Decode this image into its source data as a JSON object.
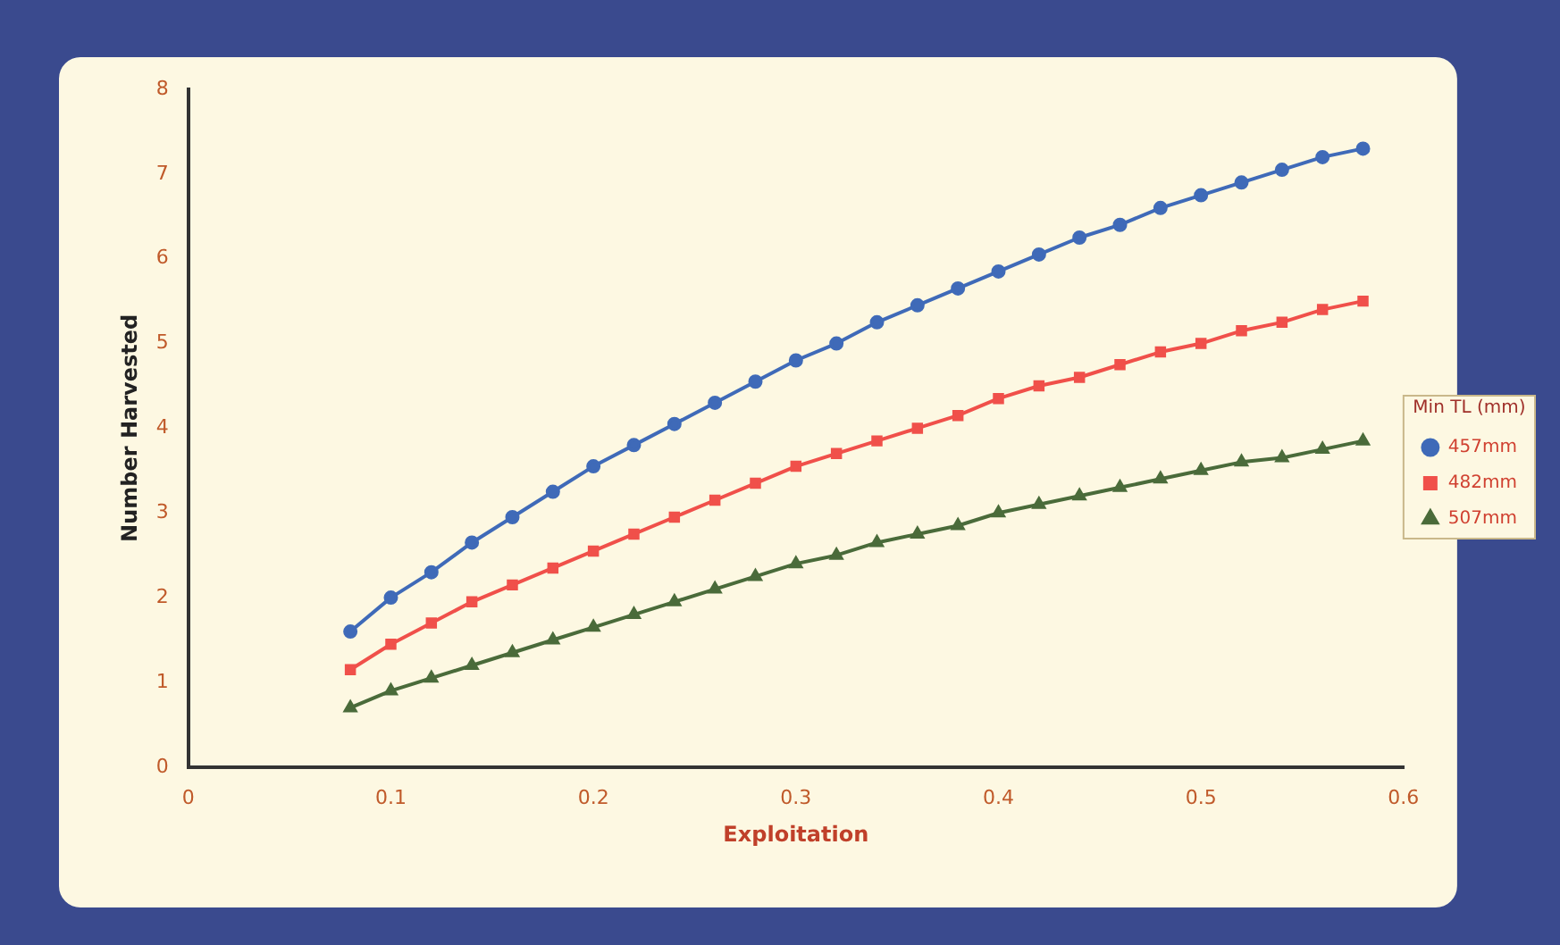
{
  "chart_data": {
    "type": "line",
    "xlabel": "Exploitation",
    "ylabel": "Number Harvested",
    "legend_title": "Min TL (mm)",
    "legend": "right",
    "grid": false,
    "line_style": "solid",
    "xlim": [
      0,
      0.6
    ],
    "xticks": [
      0,
      0.1,
      0.2,
      0.3,
      0.4,
      0.5,
      0.6
    ],
    "ylim": [
      0,
      8
    ],
    "yticks": [
      0,
      1,
      2,
      3,
      4,
      5,
      6,
      7,
      8
    ],
    "x": [
      0.08,
      0.1,
      0.12,
      0.14,
      0.16,
      0.18,
      0.2,
      0.22,
      0.24,
      0.26,
      0.28,
      0.3,
      0.32,
      0.34,
      0.36,
      0.38,
      0.4,
      0.42,
      0.44,
      0.46,
      0.48,
      0.5,
      0.52,
      0.54,
      0.56,
      0.58
    ],
    "series": [
      {
        "name": "457mm",
        "color": "#3f6ab8",
        "marker": "circle",
        "values": [
          1.6,
          2.0,
          2.3,
          2.65,
          2.95,
          3.25,
          3.55,
          3.8,
          4.05,
          4.3,
          4.55,
          4.8,
          5.0,
          5.25,
          5.45,
          5.65,
          5.85,
          6.05,
          6.25,
          6.4,
          6.6,
          6.75,
          6.9,
          7.05,
          7.2,
          7.3
        ]
      },
      {
        "name": "482mm",
        "color": "#f0504a",
        "marker": "square",
        "values": [
          1.15,
          1.45,
          1.7,
          1.95,
          2.15,
          2.35,
          2.55,
          2.75,
          2.95,
          3.15,
          3.35,
          3.55,
          3.7,
          3.85,
          4.0,
          4.15,
          4.35,
          4.5,
          4.6,
          4.75,
          4.9,
          5.0,
          5.15,
          5.25,
          5.4,
          5.5
        ]
      },
      {
        "name": "507mm",
        "color": "#4a6b3a",
        "marker": "triangle",
        "values": [
          0.7,
          0.9,
          1.05,
          1.2,
          1.35,
          1.5,
          1.65,
          1.8,
          1.95,
          2.1,
          2.25,
          2.4,
          2.5,
          2.65,
          2.75,
          2.85,
          3.0,
          3.1,
          3.2,
          3.3,
          3.4,
          3.5,
          3.6,
          3.65,
          3.75,
          3.85
        ]
      }
    ]
  }
}
